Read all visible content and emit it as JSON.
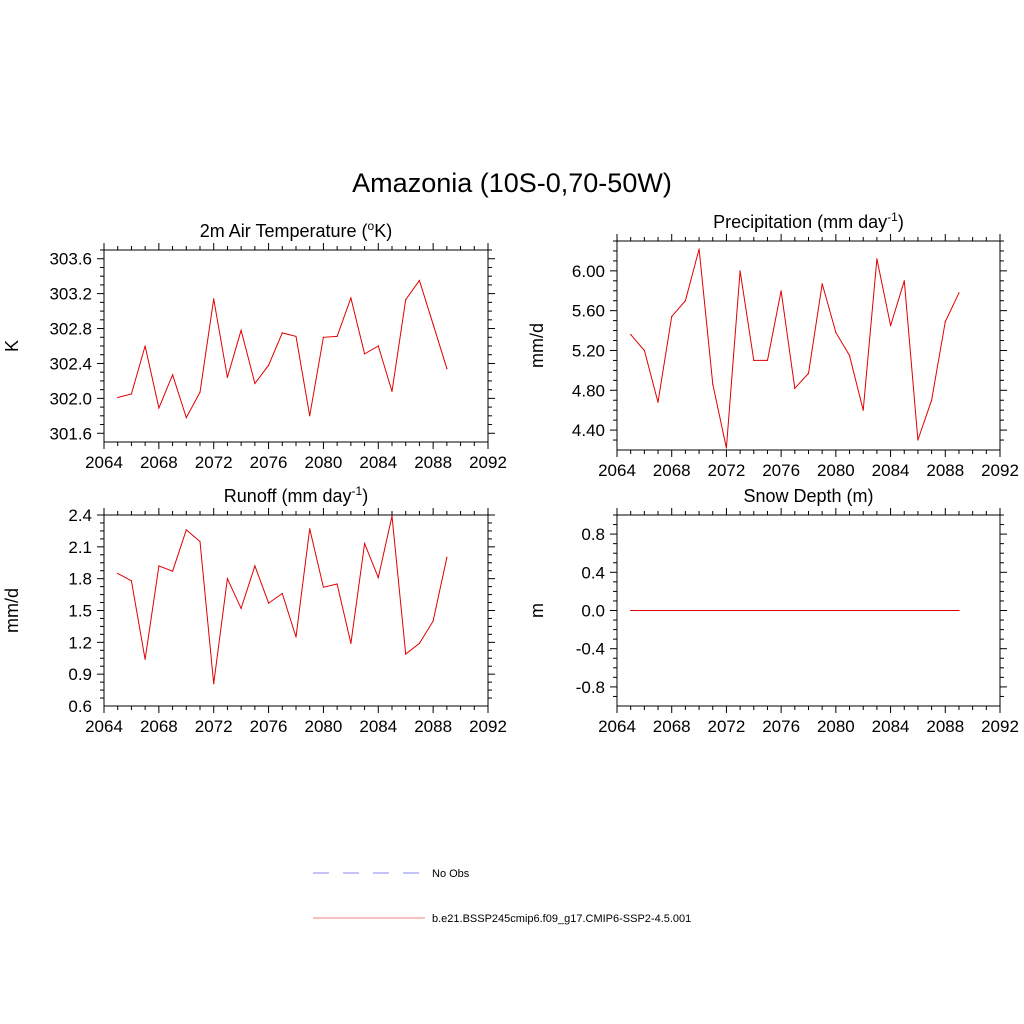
{
  "title": "Amazonia (10S-0,70-50W)",
  "legend": [
    {
      "label": "No Obs",
      "color": "#8a8af0",
      "dash": true
    },
    {
      "label": "b.e21.BSSP245cmip6.f09_g17.CMIP6-SSP2-4.5.001",
      "color": "#f08080",
      "dash": false
    }
  ],
  "chart_data": [
    {
      "type": "line",
      "title": "2m Air Temperature (",
      "title_sup": "o",
      "title_after": "K)",
      "title_sup_after": "",
      "title_end": "",
      "ylabel": "K",
      "xlim": [
        2064,
        2092
      ],
      "xticks": [
        "2064",
        "2068",
        "2072",
        "2076",
        "2080",
        "2084",
        "2088",
        "2092"
      ],
      "ylim": [
        301.5,
        303.7
      ],
      "yticks": [
        "303.6",
        "303.2",
        "302.8",
        "302.4",
        "302.0",
        "301.6"
      ],
      "x": [
        2065,
        2066,
        2067,
        2068,
        2069,
        2070,
        2071,
        2072,
        2073,
        2074,
        2075,
        2076,
        2077,
        2078,
        2079,
        2080,
        2081,
        2082,
        2083,
        2084,
        2085,
        2086,
        2087,
        2088,
        2089
      ],
      "series": [
        {
          "color": "#e00000",
          "values": [
            302.01,
            302.05,
            302.6,
            301.89,
            302.27,
            301.78,
            302.07,
            303.14,
            302.24,
            302.78,
            302.17,
            302.38,
            302.75,
            302.71,
            301.8,
            302.7,
            302.71,
            303.15,
            302.51,
            302.6,
            302.08,
            303.13,
            303.35,
            302.85,
            302.34
          ]
        }
      ],
      "legend": "bottom",
      "grid": false
    },
    {
      "type": "line",
      "title": "Precipitation (mm day",
      "title_sup": "-1",
      "title_after": ")",
      "ylabel": "mm/d",
      "xlim": [
        2064,
        2092
      ],
      "xticks": [
        "2064",
        "2068",
        "2072",
        "2076",
        "2080",
        "2084",
        "2088",
        "2092"
      ],
      "ylim": [
        4.2,
        6.3
      ],
      "yticks": [
        "6.00",
        "5.60",
        "5.20",
        "4.80",
        "4.40"
      ],
      "x": [
        2065,
        2066,
        2067,
        2068,
        2069,
        2070,
        2071,
        2072,
        2073,
        2074,
        2075,
        2076,
        2077,
        2078,
        2079,
        2080,
        2081,
        2082,
        2083,
        2084,
        2085,
        2086,
        2087,
        2088,
        2089
      ],
      "series": [
        {
          "color": "#e00000",
          "values": [
            5.36,
            5.2,
            4.68,
            5.54,
            5.7,
            6.22,
            4.86,
            4.22,
            6.0,
            5.1,
            5.1,
            5.8,
            4.82,
            4.97,
            5.87,
            5.38,
            5.15,
            4.6,
            6.12,
            5.45,
            5.9,
            4.3,
            4.7,
            5.49,
            5.78
          ]
        }
      ],
      "legend": "bottom",
      "grid": false
    },
    {
      "type": "line",
      "title": "Runoff (mm day",
      "title_sup": "-1",
      "title_after": ")",
      "ylabel": "mm/d",
      "xlim": [
        2064,
        2092
      ],
      "xticks": [
        "2064",
        "2068",
        "2072",
        "2076",
        "2080",
        "2084",
        "2088",
        "2092"
      ],
      "ylim": [
        0.6,
        2.4
      ],
      "yticks": [
        "2.4",
        "2.1",
        "1.8",
        "1.5",
        "1.2",
        "0.9",
        "0.6"
      ],
      "x": [
        2065,
        2066,
        2067,
        2068,
        2069,
        2070,
        2071,
        2072,
        2073,
        2074,
        2075,
        2076,
        2077,
        2078,
        2079,
        2080,
        2081,
        2082,
        2083,
        2084,
        2085,
        2086,
        2087,
        2088,
        2089
      ],
      "series": [
        {
          "color": "#e00000",
          "values": [
            1.85,
            1.78,
            1.04,
            1.92,
            1.87,
            2.26,
            2.15,
            0.81,
            1.8,
            1.52,
            1.92,
            1.57,
            1.66,
            1.25,
            2.27,
            1.72,
            1.75,
            1.19,
            2.13,
            1.81,
            2.39,
            1.09,
            1.19,
            1.4,
            2.0
          ]
        }
      ],
      "legend": "bottom",
      "grid": false
    },
    {
      "type": "line",
      "title": "Snow Depth (m)",
      "title_sup": "",
      "title_after": "",
      "ylabel": "m",
      "xlim": [
        2064,
        2092
      ],
      "xticks": [
        "2064",
        "2068",
        "2072",
        "2076",
        "2080",
        "2084",
        "2088",
        "2092"
      ],
      "ylim": [
        -1.0,
        1.0
      ],
      "yticks": [
        "0.8",
        "0.4",
        "0.0",
        "-0.4",
        "-0.8"
      ],
      "x": [
        2065,
        2089
      ],
      "series": [
        {
          "color": "#e00000",
          "values": [
            0.0,
            0.0
          ]
        }
      ],
      "legend": "bottom",
      "grid": false
    }
  ]
}
